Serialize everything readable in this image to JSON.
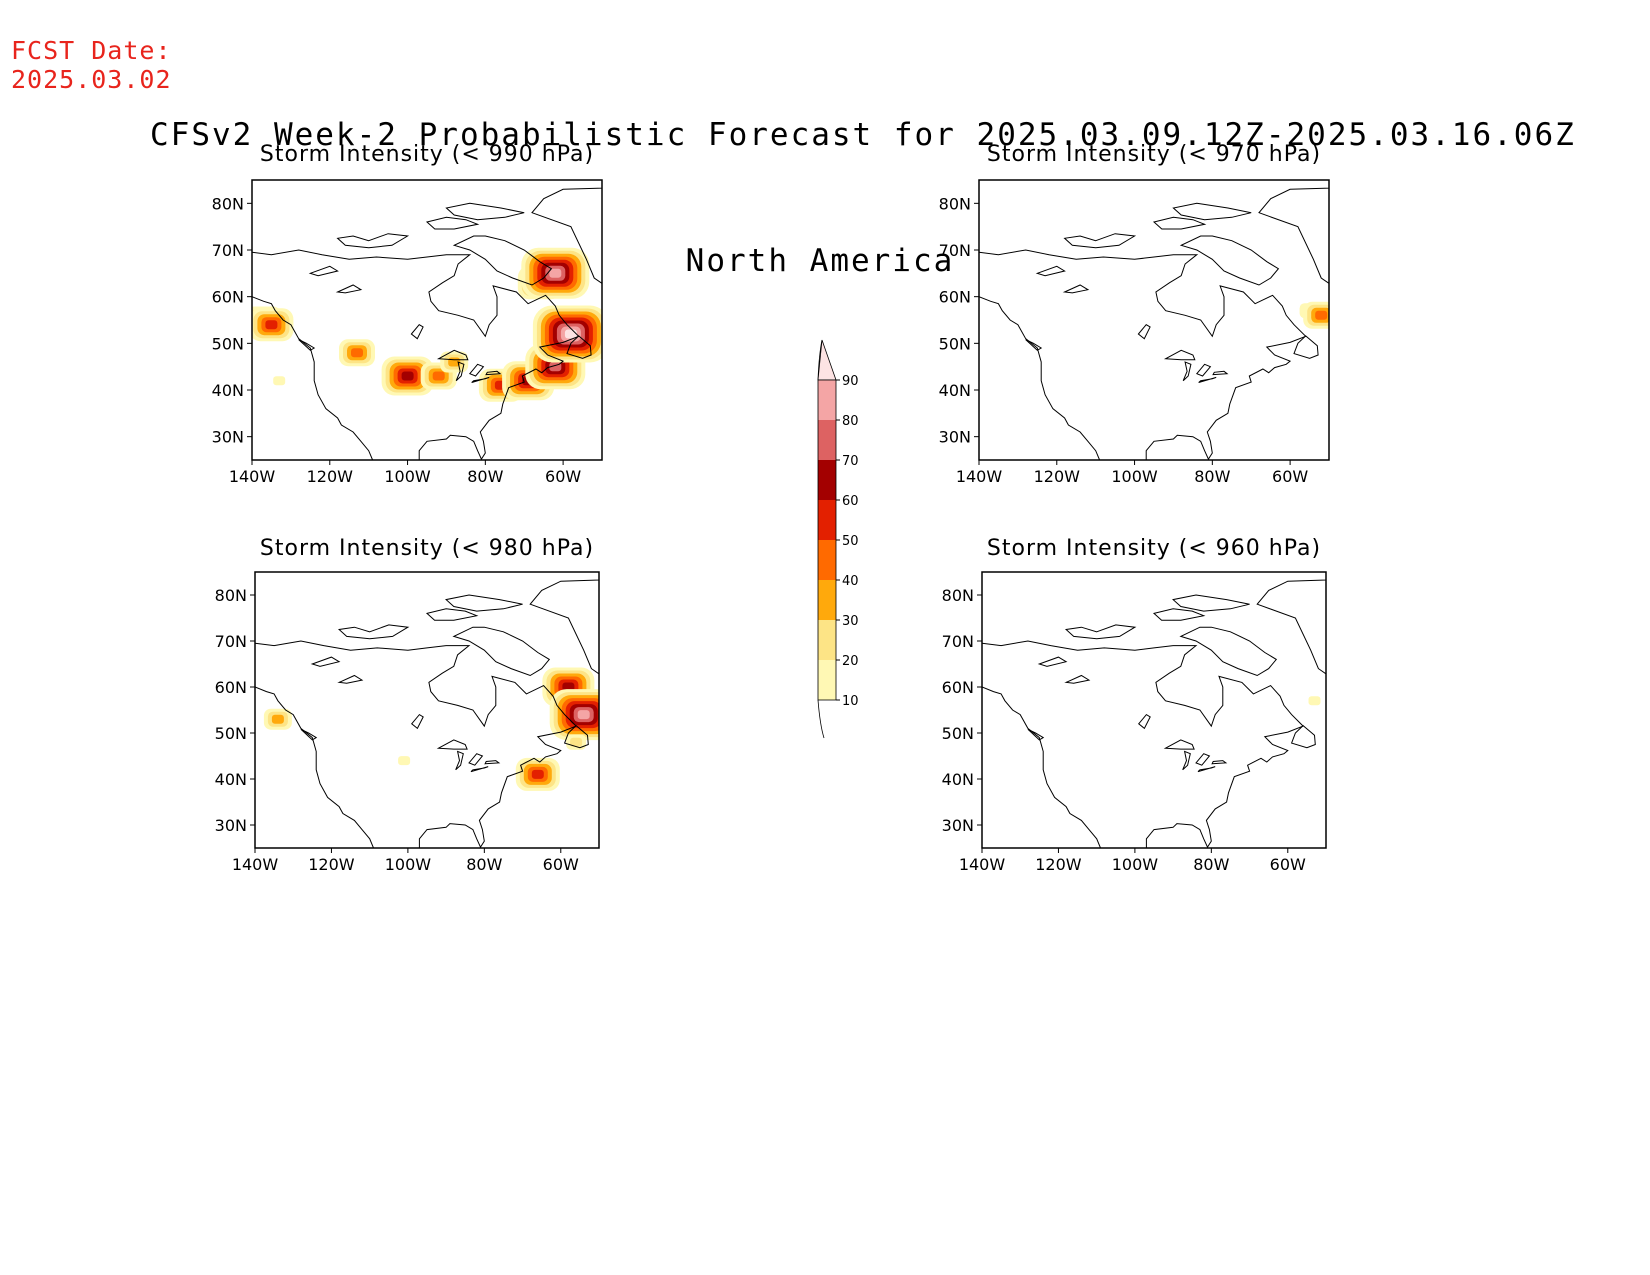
{
  "header": {
    "fcst_line1": "FCST Date:",
    "fcst_line2": "2025.03.02",
    "title_line1": "CFSv2 Week-2 Probabilistic Forecast for 2025.03.09.12Z-2025.03.16.06Z",
    "title_line2": "North America"
  },
  "colors": {
    "fcst_text": "#e8241c",
    "levels": [
      "#fff8b4",
      "#fde486",
      "#ffa90c",
      "#ff6a00",
      "#e32000",
      "#a30000",
      "#dd6262",
      "#f4a5a5",
      "#fde3e3"
    ]
  },
  "axes": {
    "lon_ticks": [
      "140W",
      "120W",
      "100W",
      "80W",
      "60W"
    ],
    "lat_ticks": [
      "80N",
      "70N",
      "60N",
      "50N",
      "40N",
      "30N"
    ]
  },
  "colorbar": {
    "labels": [
      "10",
      "20",
      "30",
      "40",
      "50",
      "60",
      "70",
      "80",
      "90"
    ]
  },
  "panels": [
    {
      "id": "p990",
      "title": "Storm Intensity (< 990 hPa)",
      "blobs": [
        {
          "lon": -137,
          "lat": 55,
          "level": 3
        },
        {
          "lon": -135,
          "lat": 54,
          "level": 4
        },
        {
          "lon": -133,
          "lat": 42,
          "level": 0
        },
        {
          "lon": -113,
          "lat": 48,
          "level": 3
        },
        {
          "lon": -100,
          "lat": 43,
          "level": 5
        },
        {
          "lon": -92,
          "lat": 43,
          "level": 3
        },
        {
          "lon": -88,
          "lat": 46,
          "level": 2
        },
        {
          "lon": -76,
          "lat": 41,
          "level": 4
        },
        {
          "lon": -69,
          "lat": 42,
          "level": 5
        },
        {
          "lon": -62,
          "lat": 45,
          "level": 6
        },
        {
          "lon": -66,
          "lat": 63,
          "level": 4
        },
        {
          "lon": -62,
          "lat": 65,
          "level": 7
        },
        {
          "lon": -58,
          "lat": 52,
          "level": 8
        }
      ]
    },
    {
      "id": "p970",
      "title": "Storm Intensity (< 970 hPa)",
      "blobs": [
        {
          "lon": -55,
          "lat": 57,
          "level": 1
        },
        {
          "lon": -52,
          "lat": 56,
          "level": 3
        }
      ]
    },
    {
      "id": "p980",
      "title": "Storm Intensity (< 980 hPa)",
      "blobs": [
        {
          "lon": -134,
          "lat": 53,
          "level": 2
        },
        {
          "lon": -101,
          "lat": 44,
          "level": 0
        },
        {
          "lon": -66,
          "lat": 41,
          "level": 4
        },
        {
          "lon": -58,
          "lat": 60,
          "level": 5
        },
        {
          "lon": -54,
          "lat": 54,
          "level": 7
        },
        {
          "lon": -56,
          "lat": 48,
          "level": 1
        }
      ]
    },
    {
      "id": "p960",
      "title": "Storm Intensity (< 960 hPa)",
      "blobs": [
        {
          "lon": -53,
          "lat": 57,
          "level": 0
        }
      ]
    }
  ]
}
